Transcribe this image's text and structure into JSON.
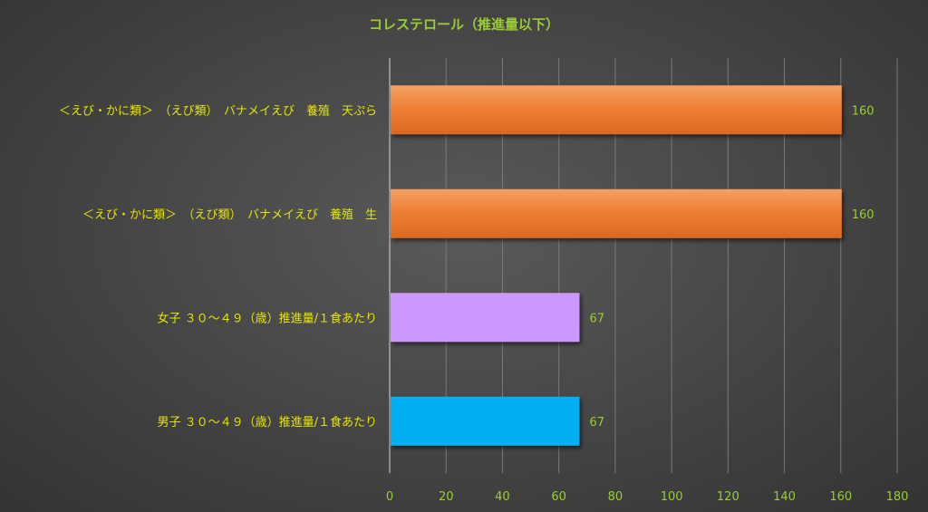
{
  "chart_data": {
    "type": "bar",
    "orientation": "horizontal",
    "title": "コレステロール（推進量以下）",
    "categories": [
      "＜えび・かに類＞　（えび類）　バナメイえび　養殖　天ぷら",
      "＜えび・かに類＞　（えび類）　バナメイえび　養殖　生",
      "女子 ３０～４９（歳）推進量/１食あたり",
      "男子 ３０～４９（歳）推進量/１食あたり"
    ],
    "values": [
      160,
      160,
      67,
      67
    ],
    "data_labels": [
      "160",
      "160",
      "67",
      "67"
    ],
    "bar_colors": [
      "#ed7d31",
      "#ed7d31",
      "#cc99ff",
      "#00b0f0"
    ],
    "xlim": [
      0,
      180
    ],
    "x_ticks": [
      "0",
      "20",
      "40",
      "60",
      "80",
      "100",
      "120",
      "140",
      "160",
      "180"
    ],
    "x_tick_values": [
      0,
      20,
      40,
      60,
      80,
      100,
      120,
      140,
      160,
      180
    ],
    "grid": true,
    "legend": "none"
  }
}
